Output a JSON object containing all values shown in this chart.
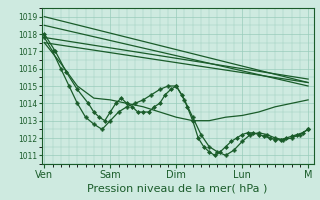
{
  "bg_color": "#ceeae0",
  "grid_color": "#99ccbb",
  "line_color": "#1a5c2a",
  "xlabel": "Pression niveau de la mer( hPa )",
  "xlabel_fontsize": 8,
  "yticks": [
    1011,
    1012,
    1013,
    1014,
    1015,
    1016,
    1017,
    1018,
    1019
  ],
  "ylim": [
    1010.5,
    1019.5
  ],
  "x_day_labels": [
    "Ven",
    "Sam",
    "Dim",
    "Lun",
    "M"
  ],
  "x_day_positions": [
    0,
    24,
    48,
    72,
    96
  ],
  "xlim": [
    -1,
    98
  ],
  "lines": [
    {
      "x": [
        0,
        96
      ],
      "y": [
        1019.0,
        1015.2
      ],
      "marker": null,
      "lw": 0.9
    },
    {
      "x": [
        0,
        96
      ],
      "y": [
        1018.5,
        1015.0
      ],
      "marker": null,
      "lw": 0.9
    },
    {
      "x": [
        0,
        96
      ],
      "y": [
        1017.8,
        1015.4
      ],
      "marker": null,
      "lw": 0.9
    },
    {
      "x": [
        0,
        96
      ],
      "y": [
        1017.5,
        1015.2
      ],
      "marker": null,
      "lw": 0.9
    },
    {
      "x": [
        0,
        6,
        12,
        18,
        24,
        30,
        36,
        42,
        48,
        54,
        60,
        66,
        72,
        78,
        84,
        90,
        96
      ],
      "y": [
        1017.5,
        1016.3,
        1015.0,
        1014.3,
        1014.2,
        1014.0,
        1013.8,
        1013.5,
        1013.2,
        1013.0,
        1013.0,
        1013.2,
        1013.3,
        1013.5,
        1013.8,
        1014.0,
        1014.2
      ],
      "marker": null,
      "lw": 0.9
    },
    {
      "x": [
        0,
        4,
        8,
        12,
        16,
        18,
        20,
        22,
        24,
        26,
        28,
        30,
        32,
        34,
        36,
        38,
        40,
        42,
        44,
        46,
        48,
        50,
        52,
        54,
        56,
        58,
        60,
        62,
        64,
        66,
        68,
        70,
        72,
        74,
        76,
        78,
        80,
        82,
        84,
        86,
        88,
        90,
        92,
        94,
        96
      ],
      "y": [
        1018.0,
        1017.0,
        1015.8,
        1014.8,
        1014.0,
        1013.5,
        1013.2,
        1013.0,
        1013.5,
        1014.0,
        1014.3,
        1014.0,
        1013.8,
        1013.5,
        1013.5,
        1013.5,
        1013.8,
        1014.0,
        1014.5,
        1014.8,
        1015.0,
        1014.5,
        1013.8,
        1013.0,
        1012.0,
        1011.5,
        1011.2,
        1011.0,
        1011.2,
        1011.5,
        1011.8,
        1012.0,
        1012.2,
        1012.3,
        1012.3,
        1012.2,
        1012.1,
        1012.0,
        1011.9,
        1011.9,
        1012.0,
        1012.1,
        1012.2,
        1012.3,
        1012.5
      ],
      "marker": "D",
      "markersize": 2.0,
      "lw": 0.9
    },
    {
      "x": [
        0,
        3,
        6,
        9,
        12,
        15,
        18,
        21,
        24,
        27,
        30,
        33,
        36,
        39,
        42,
        45,
        48,
        51,
        54,
        57,
        60,
        63,
        66,
        69,
        72,
        75,
        78,
        81,
        84,
        87,
        90,
        93,
        96
      ],
      "y": [
        1017.8,
        1017.0,
        1016.0,
        1015.0,
        1014.0,
        1013.2,
        1012.8,
        1012.5,
        1013.0,
        1013.5,
        1013.8,
        1014.0,
        1014.2,
        1014.5,
        1014.8,
        1015.0,
        1015.0,
        1014.2,
        1013.2,
        1012.2,
        1011.5,
        1011.2,
        1011.0,
        1011.3,
        1011.8,
        1012.2,
        1012.3,
        1012.2,
        1012.0,
        1011.9,
        1012.0,
        1012.2,
        1012.5
      ],
      "marker": "P",
      "markersize": 2.5,
      "lw": 0.9
    }
  ]
}
